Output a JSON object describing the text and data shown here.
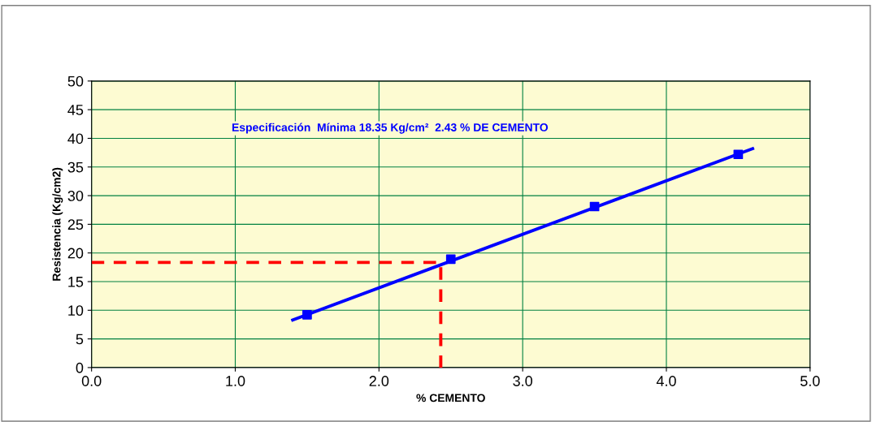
{
  "chart_data": {
    "type": "line",
    "xlabel": "% CEMENTO",
    "ylabel": "Resistencia (Kg/cm2)",
    "annotations": [
      "Especificación  Mínima 18.35 Kg/cm²  2.43 % DE CEMENTO"
    ],
    "xlim": [
      0,
      5
    ],
    "xticks": [
      {
        "value": 0,
        "label": "0.0"
      },
      {
        "value": 1,
        "label": "1.0"
      },
      {
        "value": 2,
        "label": "2.0"
      },
      {
        "value": 3,
        "label": "3.0"
      },
      {
        "value": 4,
        "label": "4.0"
      },
      {
        "value": 5,
        "label": "5.0"
      }
    ],
    "ylim": [
      0,
      50
    ],
    "yticks": [
      0,
      5,
      10,
      15,
      20,
      25,
      30,
      35,
      40,
      45,
      50
    ],
    "grid": true,
    "legend": false,
    "series": [
      {
        "color": "#0000ff",
        "x": [
          1.4,
          4.6
        ],
        "values": [
          8.3,
          38.2
        ],
        "marker": "none",
        "line_style": "solid"
      },
      {
        "type": "scatter",
        "color": "#0000ff",
        "x": [
          1.5,
          2.5,
          3.5,
          4.5
        ],
        "values": [
          9.2,
          18.9,
          28.1,
          37.2
        ],
        "marker": "square"
      },
      {
        "color": "#ff0000",
        "x": [
          0,
          2.43,
          2.43
        ],
        "values": [
          18.35,
          18.35,
          0
        ],
        "marker": "none",
        "line_style": "dashed"
      }
    ]
  }
}
